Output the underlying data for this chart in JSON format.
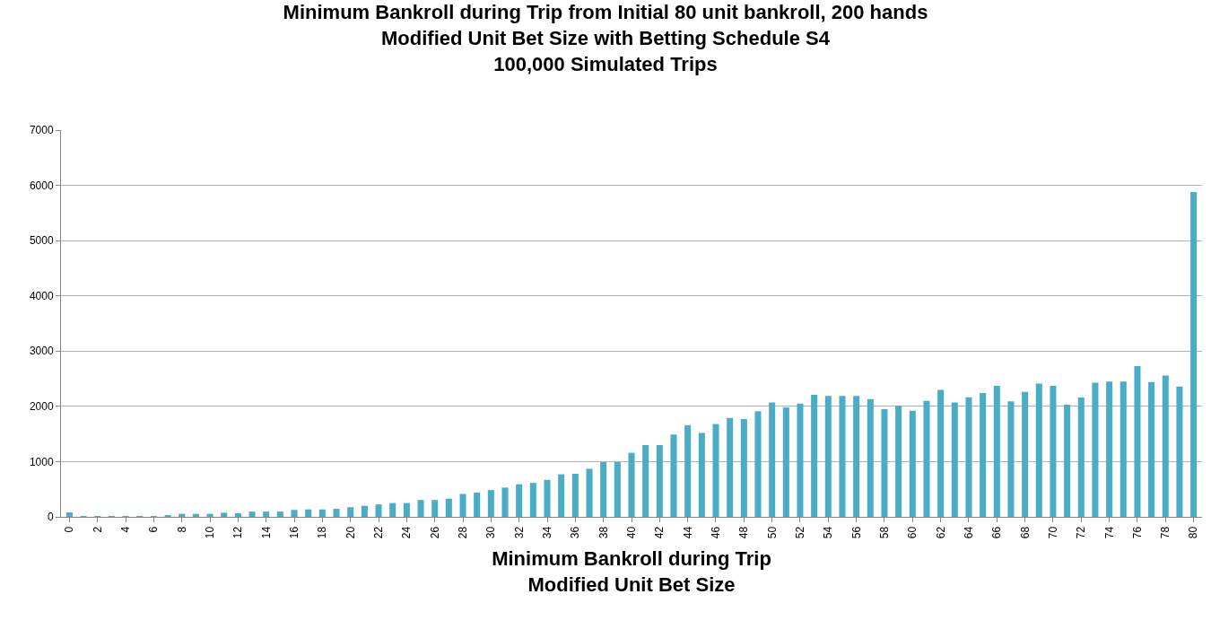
{
  "chart_data": {
    "type": "bar",
    "title": "Minimum Bankroll during Trip from Initial 80 unit bankroll, 200 hands\nModified Unit Bet Size with Betting Schedule S4\n100,000 Simulated Trips",
    "xlabel": "Minimum Bankroll during Trip\nModified Unit Bet Size",
    "categories": [
      "0",
      null,
      "2",
      null,
      "4",
      null,
      "6",
      null,
      "8",
      null,
      "10",
      null,
      "12",
      null,
      "14",
      null,
      "16",
      null,
      "18",
      null,
      "20",
      null,
      "22",
      null,
      "24",
      null,
      "26",
      null,
      "28",
      null,
      "30",
      null,
      "32",
      null,
      "34",
      null,
      "36",
      null,
      "38",
      null,
      "40",
      null,
      "42",
      null,
      "44",
      null,
      "46",
      null,
      "48",
      null,
      "50",
      null,
      "52",
      null,
      "54",
      null,
      "56",
      null,
      "58",
      null,
      "60",
      null,
      "62",
      null,
      "64",
      null,
      "66",
      null,
      "68",
      null,
      "70",
      null,
      "72",
      null,
      "74",
      null,
      "76",
      null,
      "78",
      null,
      "80"
    ],
    "values": [
      80,
      15,
      15,
      15,
      15,
      15,
      15,
      30,
      55,
      55,
      55,
      75,
      65,
      95,
      95,
      95,
      125,
      135,
      135,
      145,
      175,
      200,
      225,
      250,
      250,
      305,
      305,
      330,
      415,
      440,
      485,
      530,
      590,
      615,
      670,
      770,
      780,
      870,
      990,
      990,
      1160,
      1300,
      1300,
      1490,
      1660,
      1520,
      1680,
      1790,
      1770,
      1910,
      2070,
      1980,
      2050,
      2210,
      2190,
      2190,
      2190,
      2130,
      1950,
      2010,
      1920,
      2100,
      2300,
      2070,
      2160,
      2240,
      2370,
      2090,
      2260,
      2410,
      2370,
      2030,
      2160,
      2430,
      2450,
      2450,
      2730,
      2440,
      2560,
      2360,
      5880
    ],
    "color": "#4bacc6",
    "ylim": [
      0,
      7000
    ],
    "yticks": [
      0,
      1000,
      2000,
      3000,
      4000,
      5000,
      6000,
      7000
    ],
    "grid": "y"
  }
}
